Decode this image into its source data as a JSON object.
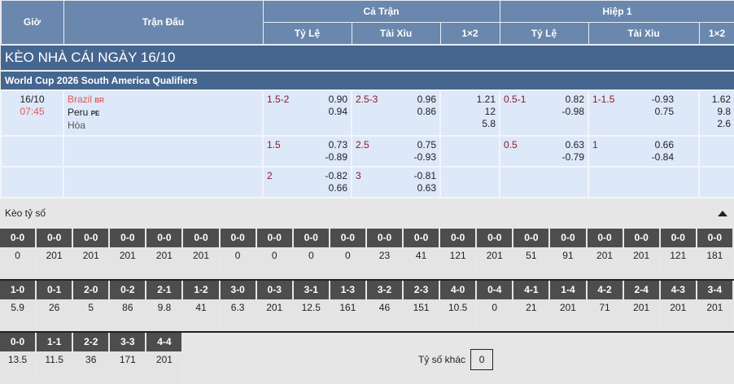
{
  "header": {
    "time": "Giờ",
    "match": "Trận Đấu",
    "full": "Cả Trận",
    "half": "Hiệp 1",
    "handicap": "Tỷ Lệ",
    "ou": "Tài Xỉu",
    "x12": "1×2"
  },
  "title": "KÈO NHÀ CÁI NGÀY 16/10",
  "league": "World Cup 2026 South America Qualifiers",
  "match": {
    "date": "16/10",
    "time": "07:45",
    "home": "Brazil",
    "home_code": "BR",
    "away": "Peru",
    "away_code": "PE",
    "draw": "Hòa"
  },
  "rows": [
    {
      "ft_hdp": "1.5-2",
      "ft_hdp_h": "0.90",
      "ft_hdp_a": "0.94",
      "ft_ou": "2.5-3",
      "ft_ou_o": "0.96",
      "ft_ou_u": "0.86",
      "ft_1": "1.21",
      "ft_2": "12",
      "ft_x": "5.8",
      "h1_hdp": "0.5-1",
      "h1_hdp_h": "0.82",
      "h1_hdp_a": "-0.98",
      "h1_ou": "1-1.5",
      "h1_ou_o": "-0.93",
      "h1_ou_u": "0.75",
      "h1_1": "1.62",
      "h1_2": "9.8",
      "h1_x": "2.6"
    },
    {
      "ft_hdp": "1.5",
      "ft_hdp_h": "0.73",
      "ft_hdp_a": "-0.89",
      "ft_ou": "2.5",
      "ft_ou_o": "0.75",
      "ft_ou_u": "-0.93",
      "h1_hdp": "0.5",
      "h1_hdp_h": "0.63",
      "h1_hdp_a": "-0.79",
      "h1_ou": "1",
      "h1_ou_o": "0.66",
      "h1_ou_u": "-0.84"
    },
    {
      "ft_hdp": "2",
      "ft_hdp_h": "-0.82",
      "ft_hdp_a": "0.66",
      "ft_ou": "3",
      "ft_ou_o": "-0.81",
      "ft_ou_u": "0.63"
    }
  ],
  "correct_score": {
    "label": "Kèo tỷ số",
    "row1": [
      {
        "s": "0-0",
        "v": "0"
      },
      {
        "s": "0-0",
        "v": "201"
      },
      {
        "s": "0-0",
        "v": "201"
      },
      {
        "s": "0-0",
        "v": "201"
      },
      {
        "s": "0-0",
        "v": "201"
      },
      {
        "s": "0-0",
        "v": "201"
      },
      {
        "s": "0-0",
        "v": "0"
      },
      {
        "s": "0-0",
        "v": "0"
      },
      {
        "s": "0-0",
        "v": "0"
      },
      {
        "s": "0-0",
        "v": "0"
      },
      {
        "s": "0-0",
        "v": "23"
      },
      {
        "s": "0-0",
        "v": "41"
      },
      {
        "s": "0-0",
        "v": "121"
      },
      {
        "s": "0-0",
        "v": "201"
      },
      {
        "s": "0-0",
        "v": "51"
      },
      {
        "s": "0-0",
        "v": "91"
      },
      {
        "s": "0-0",
        "v": "201"
      },
      {
        "s": "0-0",
        "v": "201"
      },
      {
        "s": "0-0",
        "v": "121"
      },
      {
        "s": "0-0",
        "v": "181"
      }
    ],
    "row2": [
      {
        "s": "1-0",
        "v": "5.9"
      },
      {
        "s": "0-1",
        "v": "26"
      },
      {
        "s": "2-0",
        "v": "5"
      },
      {
        "s": "0-2",
        "v": "86"
      },
      {
        "s": "2-1",
        "v": "9.8"
      },
      {
        "s": "1-2",
        "v": "41"
      },
      {
        "s": "3-0",
        "v": "6.3"
      },
      {
        "s": "0-3",
        "v": "201"
      },
      {
        "s": "3-1",
        "v": "12.5"
      },
      {
        "s": "1-3",
        "v": "161"
      },
      {
        "s": "3-2",
        "v": "46"
      },
      {
        "s": "2-3",
        "v": "151"
      },
      {
        "s": "4-0",
        "v": "10.5"
      },
      {
        "s": "0-4",
        "v": "0"
      },
      {
        "s": "4-1",
        "v": "21"
      },
      {
        "s": "1-4",
        "v": "201"
      },
      {
        "s": "4-2",
        "v": "71"
      },
      {
        "s": "2-4",
        "v": "201"
      },
      {
        "s": "4-3",
        "v": "201"
      },
      {
        "s": "3-4",
        "v": "201"
      }
    ],
    "row3": [
      {
        "s": "0-0",
        "v": "13.5"
      },
      {
        "s": "1-1",
        "v": "11.5"
      },
      {
        "s": "2-2",
        "v": "36"
      },
      {
        "s": "3-3",
        "v": "171"
      },
      {
        "s": "4-4",
        "v": "201"
      }
    ],
    "other_label": "Tỷ số khác",
    "other_value": "0"
  }
}
